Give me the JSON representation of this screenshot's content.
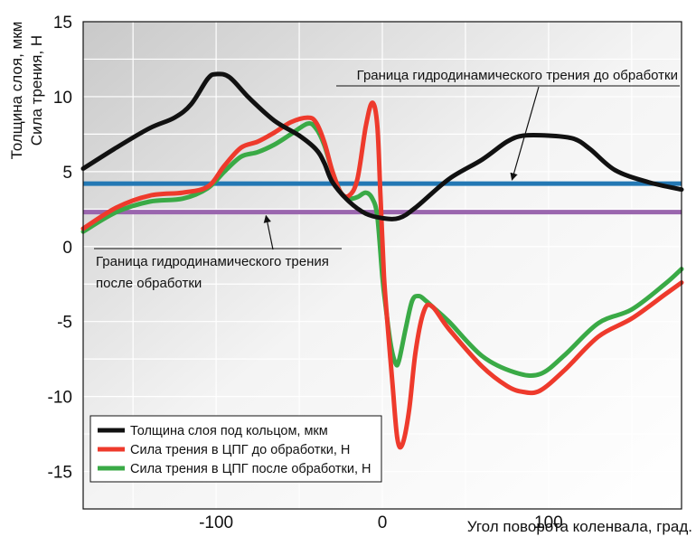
{
  "chart_data": {
    "type": "line",
    "ylabel_lines": [
      "Толщина слоя, мкм",
      "Сила трения, Н"
    ],
    "xlabel": "Угол поворота коленвала, град.",
    "xlim": [
      -180,
      180
    ],
    "ylim": [
      -17.5,
      15
    ],
    "grid": true,
    "x_ticks": [
      -100,
      0,
      100
    ],
    "y_ticks": [
      15,
      10,
      5,
      0,
      -5,
      -10,
      -15
    ],
    "legend_position": "bottom-left",
    "series": [
      {
        "name": "Толщина слоя под кольцом, мкм",
        "color": "#111111",
        "x": [
          -180,
          -160,
          -140,
          -125,
          -115,
          -105,
          -100,
          -92,
          -80,
          -65,
          -50,
          -40,
          -35,
          -30,
          -20,
          -10,
          0,
          10,
          20,
          40,
          60,
          75,
          85,
          100,
          115,
          125,
          140,
          160,
          180
        ],
        "y": [
          5.2,
          6.6,
          7.9,
          8.6,
          9.5,
          11.2,
          11.5,
          11.3,
          9.9,
          8.4,
          7.4,
          6.5,
          5.6,
          4.3,
          3.0,
          2.2,
          1.9,
          1.9,
          2.6,
          4.5,
          5.8,
          7.0,
          7.4,
          7.4,
          7.2,
          6.5,
          5.1,
          4.3,
          3.8
        ]
      },
      {
        "name": "Сила трения в ЦПГ до обработки, Н",
        "color": "#ee3a2c",
        "x": [
          -180,
          -160,
          -140,
          -120,
          -105,
          -95,
          -85,
          -75,
          -65,
          -55,
          -45,
          -40,
          -35,
          -30,
          -25,
          -20,
          -15,
          -10,
          -6,
          -3,
          -1,
          1,
          3,
          6,
          9,
          12,
          16,
          20,
          25,
          30,
          40,
          60,
          75,
          85,
          95,
          110,
          130,
          150,
          170,
          180
        ],
        "y": [
          1.2,
          2.6,
          3.4,
          3.6,
          4.0,
          5.4,
          6.6,
          7.0,
          7.6,
          8.3,
          8.6,
          8.3,
          7.0,
          5.0,
          3.6,
          3.4,
          4.5,
          8.0,
          9.6,
          8.0,
          3.0,
          -2.0,
          -5.0,
          -9.0,
          -12.8,
          -13.2,
          -11.0,
          -7.0,
          -4.3,
          -4.0,
          -5.5,
          -8.0,
          -9.3,
          -9.7,
          -9.6,
          -8.2,
          -6.0,
          -4.8,
          -3.2,
          -2.4
        ]
      },
      {
        "name": "Сила трения в ЦПГ после обработки, Н",
        "color": "#3aaa46",
        "x": [
          -180,
          -160,
          -140,
          -120,
          -105,
          -95,
          -85,
          -75,
          -65,
          -55,
          -45,
          -40,
          -35,
          -30,
          -25,
          -20,
          -15,
          -10,
          -6,
          -3,
          0,
          2,
          5,
          8,
          10,
          14,
          18,
          22,
          26,
          30,
          40,
          60,
          80,
          95,
          110,
          130,
          150,
          170,
          180
        ],
        "y": [
          1.0,
          2.3,
          3.0,
          3.2,
          3.9,
          5.0,
          6.0,
          6.3,
          6.8,
          7.5,
          8.2,
          7.9,
          6.8,
          5.0,
          3.6,
          3.2,
          3.3,
          3.6,
          3.2,
          2.0,
          -2.0,
          -4.0,
          -6.5,
          -7.8,
          -7.6,
          -5.5,
          -3.6,
          -3.3,
          -3.6,
          -4.0,
          -5.0,
          -7.3,
          -8.4,
          -8.5,
          -7.2,
          -5.1,
          -4.2,
          -2.5,
          -1.5
        ]
      }
    ],
    "reference_lines": [
      {
        "label": "Граница гидродинамического трения до обработки",
        "y": 4.2,
        "color": "#2378b4",
        "arrow_x": 78
      },
      {
        "label": "Граница гидродинамического трения после обработки",
        "y": 2.3,
        "color": "#9a66ae",
        "arrow_x": -70
      }
    ]
  },
  "annotations": {
    "top": "Граница гидродинамического трения до обработки",
    "bottom_line1": "Граница гидродинамического трения",
    "bottom_line2": "после обработки"
  }
}
